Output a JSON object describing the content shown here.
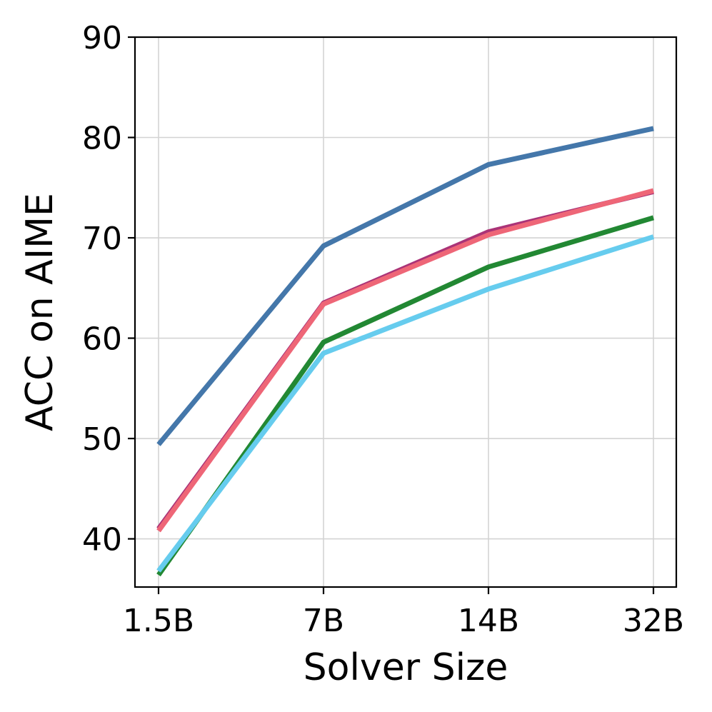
{
  "chart_data": {
    "type": "line",
    "title": "",
    "xlabel": "Solver Size",
    "ylabel": "ACC on AIME",
    "categories": [
      "1.5B",
      "7B",
      "14B",
      "32B"
    ],
    "yticks": [
      40,
      50,
      60,
      70,
      80,
      90
    ],
    "ylim": [
      35.2,
      90
    ],
    "grid": true,
    "series": [
      {
        "color": "#4477aa",
        "values": [
          49.4,
          69.2,
          77.3,
          80.9
        ]
      },
      {
        "color": "#aa3377",
        "values": [
          41.0,
          63.5,
          70.6,
          74.6
        ]
      },
      {
        "color": "#ee6677",
        "values": [
          40.8,
          63.4,
          70.3,
          74.7
        ]
      },
      {
        "color": "#228833",
        "values": [
          36.4,
          59.6,
          67.1,
          72.0
        ]
      },
      {
        "color": "#66ccee",
        "values": [
          36.8,
          58.5,
          64.9,
          70.1
        ]
      }
    ]
  }
}
